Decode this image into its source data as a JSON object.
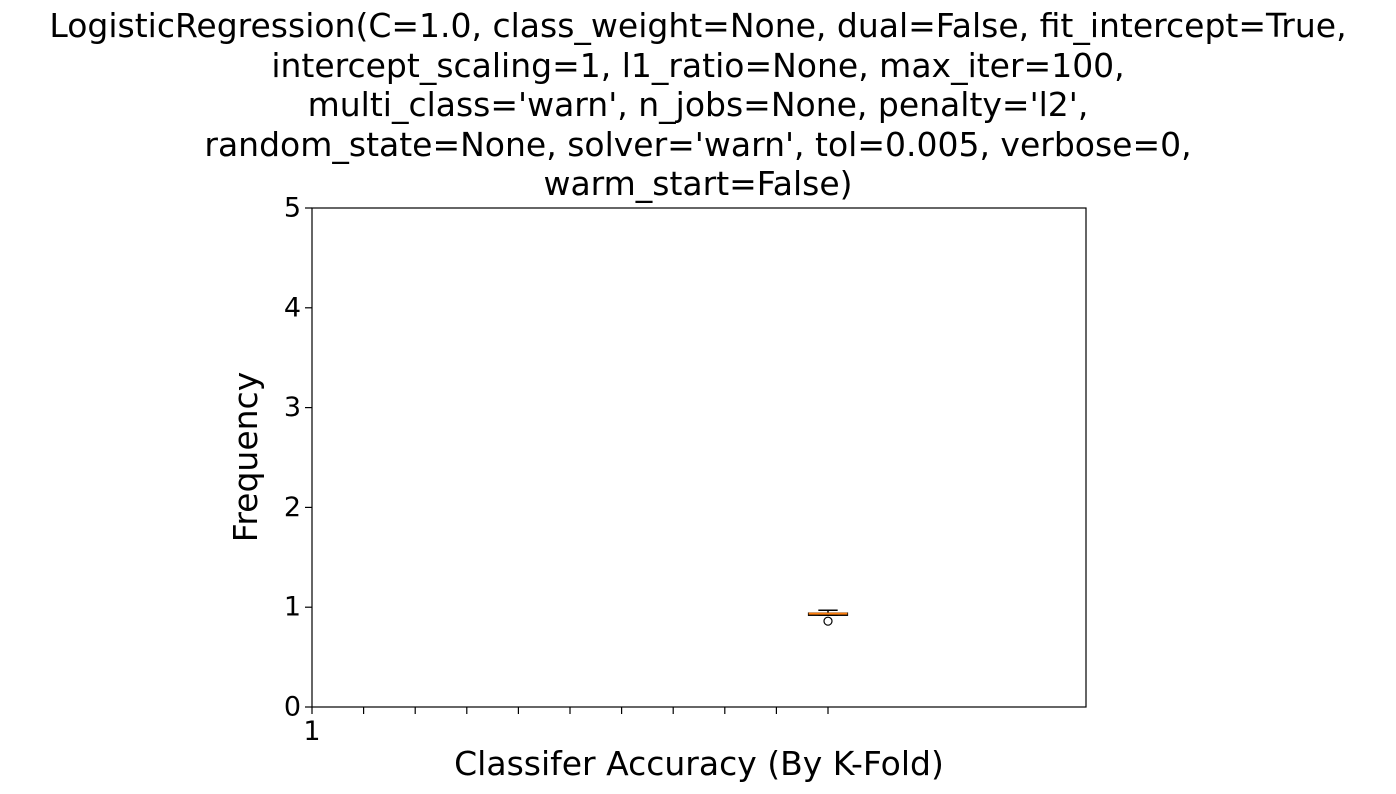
{
  "chart_data": {
    "type": "box",
    "title_lines": [
      "LogisticRegression(C=1.0, class_weight=None, dual=False, fit_intercept=True,",
      "intercept_scaling=1, l1_ratio=None, max_iter=100,",
      "multi_class='warn', n_jobs=None, penalty='l2',",
      "random_state=None, solver='warn', tol=0.005, verbose=0,",
      "warm_start=False)"
    ],
    "xlabel": "Classifer Accuracy (By K-Fold)",
    "ylabel": "Frequency",
    "ylim": [
      0,
      5
    ],
    "yticks": [
      0,
      1,
      2,
      3,
      4,
      5
    ],
    "xlim": [
      1,
      16
    ],
    "xticks": [
      1,
      2,
      3,
      4,
      5,
      6,
      7,
      8,
      9,
      10,
      11
    ],
    "xtick_labels": [
      "1",
      "",
      "",
      "",
      "",
      "",
      "",
      "",
      "",
      "",
      ""
    ],
    "boxes": [
      {
        "position": 11,
        "whisker_low": 0.92,
        "q1": 0.92,
        "median": 0.935,
        "q3": 0.94,
        "whisker_high": 0.97,
        "fliers": [
          0.86
        ]
      }
    ],
    "colors": {
      "median": "#ff7f0e",
      "box": "#000000",
      "axes": "#000000"
    },
    "grid": false,
    "legend": "none"
  }
}
